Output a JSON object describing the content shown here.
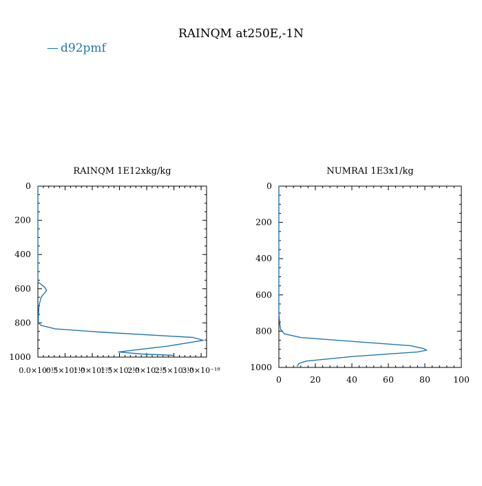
{
  "figure": {
    "title": "RAINQM at250E,-1N",
    "legend": {
      "label": "d92pmf",
      "marker": "—",
      "color": "#1f77b4",
      "placement": "top-left"
    }
  },
  "chart_data": [
    {
      "type": "line",
      "title": "RAINQM  1E12xkg/kg",
      "xlabel": "",
      "ylabel": "",
      "xlim": [
        0,
        3.1e-18
      ],
      "ylim": [
        1000,
        0
      ],
      "y_inverted": true,
      "x_tick_values": [
        0,
        5e-19,
        1e-18,
        1.5e-18,
        2e-18,
        2.5e-18,
        3e-18
      ],
      "x_tick_labels": [
        "0.0×10⁻¹⁸",
        "0.5×10⁻¹⁸",
        "1.0×10⁻¹⁸",
        "1.5×10⁻¹⁸",
        "2.0×10⁻¹⁸",
        "2.5×10⁻¹⁸",
        "3.0×10⁻¹⁸"
      ],
      "y_ticks": [
        0,
        200,
        400,
        600,
        800,
        1000
      ],
      "series": [
        {
          "name": "d92pmf",
          "color": "#1f77b4",
          "x": [
            0,
            0,
            1.2e-19,
            1.6e-19,
            6e-20,
            2e-20,
            1e-20,
            1e-20,
            6e-20,
            3.2e-19,
            1.2e-18,
            2.85e-18,
            3.04e-18,
            2.4e-18,
            1.48e-18,
            1.9e-18,
            2.5e-18
          ],
          "y": [
            0,
            560,
            590,
            610,
            650,
            700,
            760,
            800,
            815,
            835,
            855,
            885,
            902,
            935,
            970,
            982,
            990
          ]
        }
      ]
    },
    {
      "type": "line",
      "title": "NUMRAI  1E3x1/kg",
      "xlabel": "",
      "ylabel": "",
      "xlim": [
        0,
        100
      ],
      "ylim": [
        1000,
        0
      ],
      "y_inverted": true,
      "x_tick_values": [
        0,
        20,
        40,
        60,
        80,
        100
      ],
      "x_tick_labels": [
        "0",
        "20",
        "40",
        "60",
        "80",
        "100"
      ],
      "y_ticks": [
        0,
        200,
        400,
        600,
        800,
        1000
      ],
      "series": [
        {
          "name": "d92pmf",
          "color": "#1f77b4",
          "x": [
            0,
            0,
            0.5,
            1,
            3,
            12,
            45,
            72,
            79,
            81,
            76,
            40,
            15,
            11,
            10
          ],
          "y": [
            0,
            700,
            760,
            790,
            815,
            835,
            860,
            880,
            895,
            905,
            915,
            940,
            965,
            978,
            995
          ]
        }
      ]
    }
  ]
}
